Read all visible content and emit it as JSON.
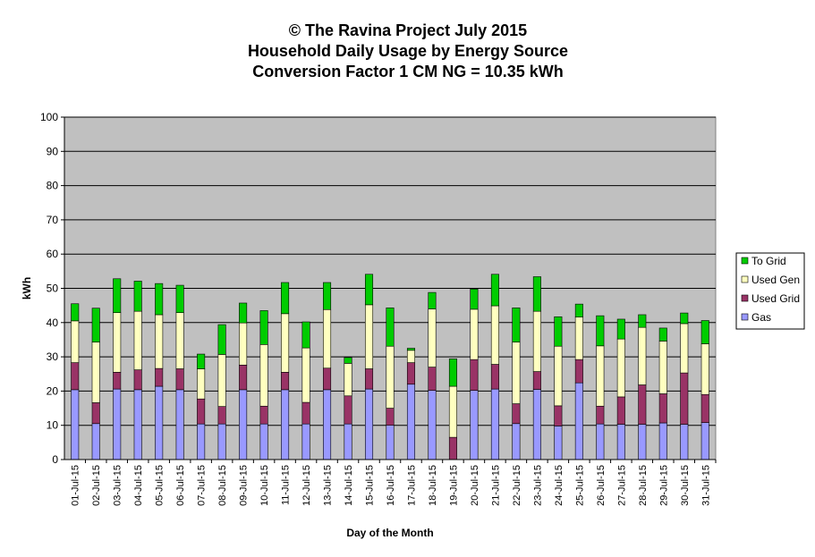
{
  "chart_data": {
    "type": "bar",
    "stacked": true,
    "title_lines": [
      "© The Ravina Project July 2015",
      "Household Daily Usage by Energy Source",
      "Conversion Factor 1 CM NG = 10.35 kWh"
    ],
    "xlabel": "Day of the Month",
    "ylabel": "kWh",
    "ylim": [
      0,
      100
    ],
    "yticks": [
      0,
      10,
      20,
      30,
      40,
      50,
      60,
      70,
      80,
      90,
      100
    ],
    "grid": true,
    "legend_position": "right",
    "categories": [
      "01-Jul-15",
      "02-Jul-15",
      "03-Jul-15",
      "04-Jul-15",
      "05-Jul-15",
      "06-Jul-15",
      "07-Jul-15",
      "08-Jul-15",
      "09-Jul-15",
      "10-Jul-15",
      "11-Jul-15",
      "12-Jul-15",
      "13-Jul-15",
      "14-Jul-15",
      "15-Jul-15",
      "16-Jul-15",
      "17-Jul-15",
      "18-Jul-15",
      "19-Jul-15",
      "20-Jul-15",
      "21-Jul-15",
      "22-Jul-15",
      "23-Jul-15",
      "24-Jul-15",
      "25-Jul-15",
      "26-Jul-15",
      "27-Jul-15",
      "28-Jul-15",
      "29-Jul-15",
      "30-Jul-15",
      "31-Jul-15"
    ],
    "series": [
      {
        "name": "Gas",
        "color": "#9999ff",
        "values": [
          20.4,
          10.5,
          20.6,
          20.4,
          21.4,
          20.4,
          10.4,
          10.4,
          20.4,
          10.4,
          20.4,
          10.4,
          20.4,
          10.4,
          20.6,
          10.0,
          22.0,
          20.2,
          0.0,
          20.2,
          20.6,
          10.5,
          20.5,
          9.8,
          22.4,
          10.4,
          10.3,
          10.3,
          10.7,
          10.3,
          10.8
        ]
      },
      {
        "name": "Used Grid",
        "color": "#993366",
        "values": [
          7.9,
          6.1,
          4.9,
          5.8,
          5.2,
          6.1,
          7.3,
          5.1,
          7.2,
          5.2,
          5.1,
          6.3,
          6.3,
          8.2,
          5.9,
          5.0,
          6.3,
          6.8,
          6.5,
          9.0,
          7.2,
          5.8,
          5.2,
          5.9,
          6.8,
          5.2,
          8.0,
          11.5,
          8.5,
          15.0,
          8.2
        ]
      },
      {
        "name": "Used Gen",
        "color": "#ffffc0",
        "values": [
          12.2,
          17.7,
          17.4,
          17.1,
          15.7,
          16.4,
          8.8,
          15.2,
          12.3,
          18.0,
          17.1,
          15.9,
          17.1,
          9.5,
          18.7,
          18.1,
          3.6,
          17.0,
          14.9,
          14.7,
          17.1,
          18.0,
          17.6,
          17.4,
          12.4,
          17.6,
          16.9,
          16.8,
          15.4,
          14.4,
          14.8
        ]
      },
      {
        "name": "To Grid",
        "color": "#00cc00",
        "values": [
          5.0,
          9.9,
          9.9,
          8.8,
          9.1,
          8.0,
          4.3,
          8.7,
          5.8,
          9.9,
          9.1,
          7.6,
          7.9,
          1.7,
          8.9,
          11.2,
          0.6,
          4.8,
          8.0,
          5.9,
          9.2,
          10.0,
          10.1,
          8.6,
          3.8,
          8.8,
          5.8,
          3.7,
          3.8,
          3.1,
          6.8
        ]
      }
    ],
    "legend_order": [
      "To Grid",
      "Used Gen",
      "Used Grid",
      "Gas"
    ]
  },
  "colors": {
    "plot_background": "#c0c0c0",
    "gridline": "#000000",
    "frame": "#808080"
  }
}
